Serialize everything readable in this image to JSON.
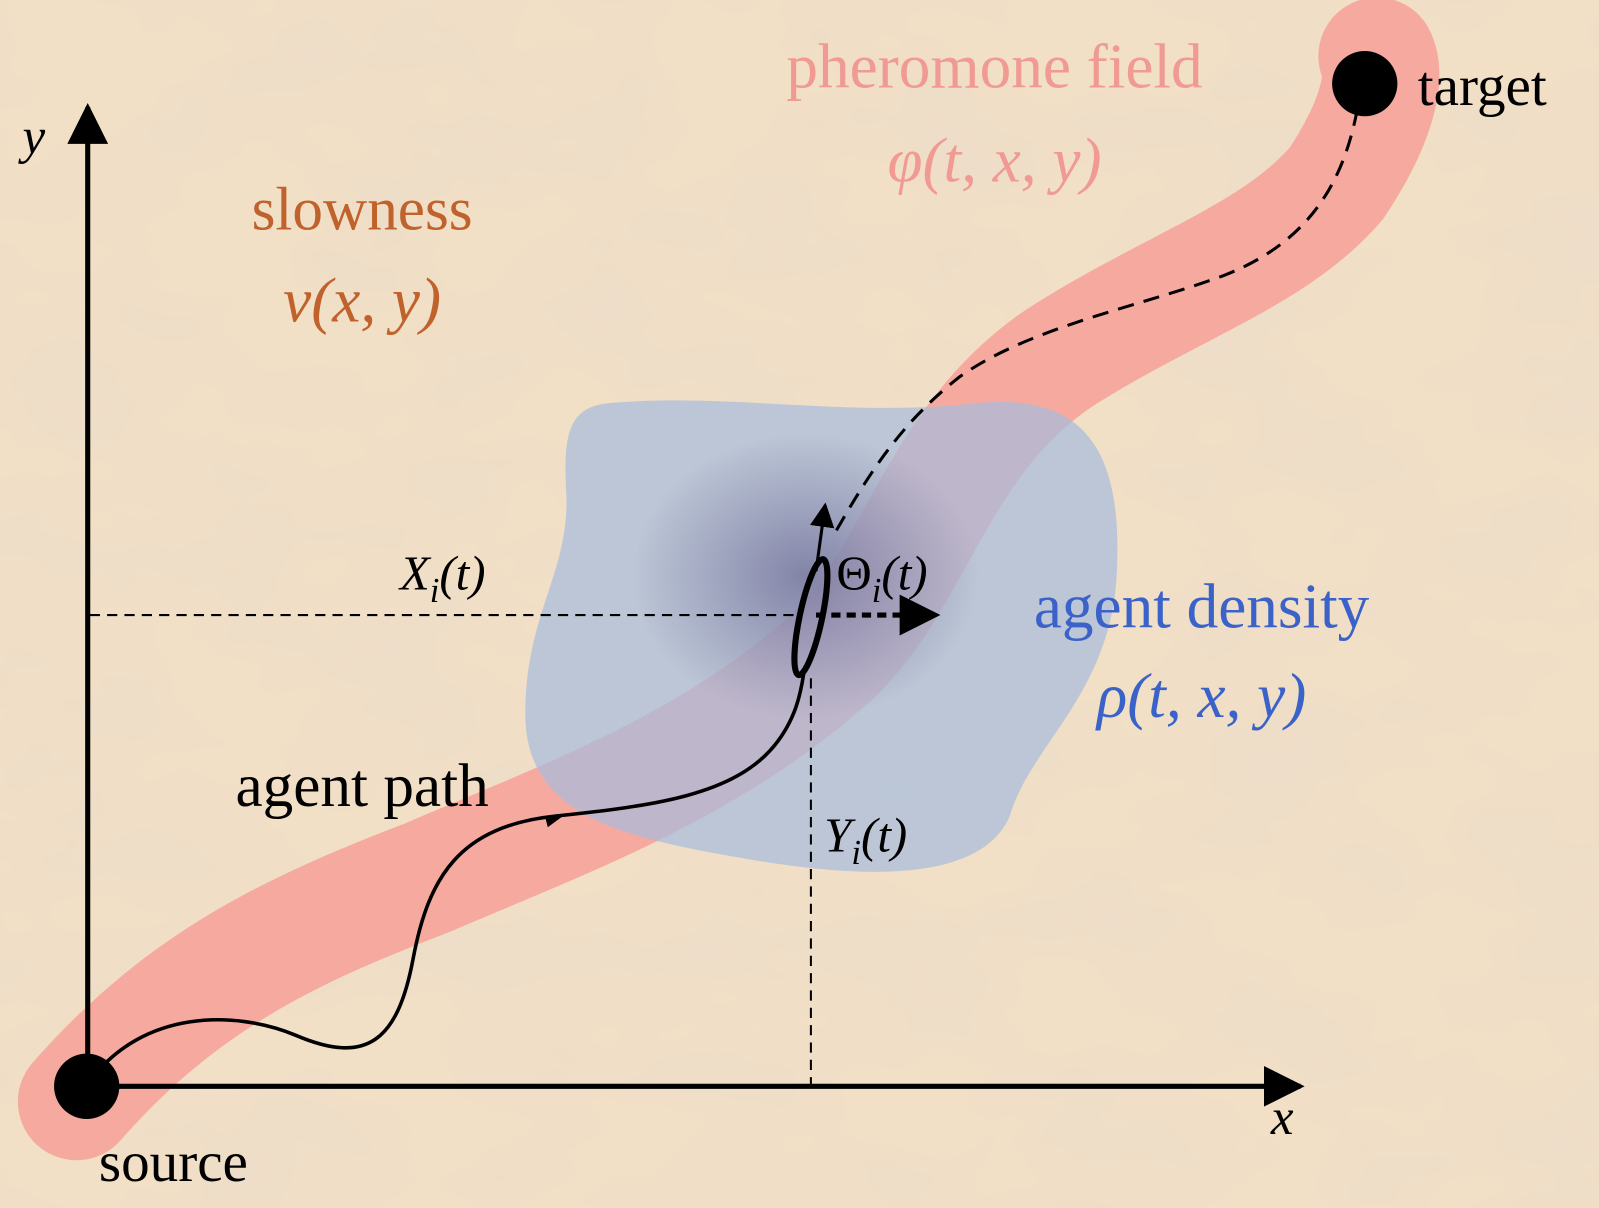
{
  "labels": {
    "pheromone_title": "pheromone field",
    "pheromone_symbol": "φ(t, x, y)",
    "target": "target",
    "y_axis": "y",
    "slowness_title": "slowness",
    "slowness_symbol": "ν(x, y)",
    "position_x": {
      "base": "X",
      "sub": "i",
      "arg": "(t)"
    },
    "heading": {
      "base": "Θ",
      "sub": "i",
      "arg": "(t)"
    },
    "density_title": "agent density",
    "density_symbol": "ρ(t, x, y)",
    "agent_path": "agent path",
    "position_y": {
      "base": "Y",
      "sub": "i",
      "arg": "(t)"
    },
    "x_axis": "x",
    "source": "source"
  }
}
